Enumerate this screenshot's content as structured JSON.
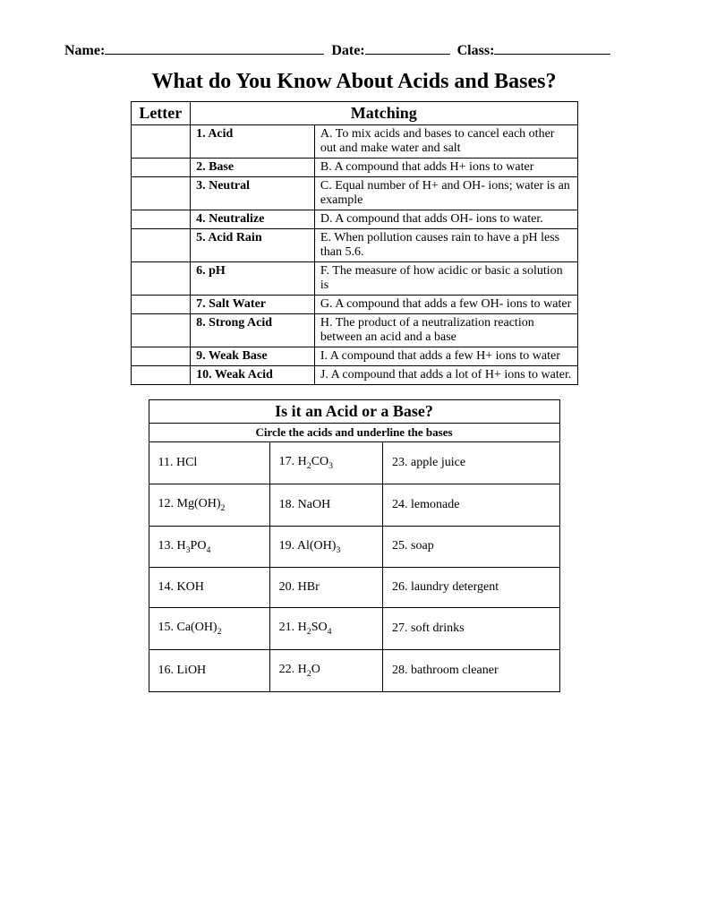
{
  "header": {
    "name_label": "Name:",
    "date_label": "Date:",
    "class_label": "Class:",
    "name_blank_width": 245,
    "date_blank_width": 95,
    "class_blank_width": 130
  },
  "title": "What do You Know About Acids and Bases?",
  "matching": {
    "col_headers": {
      "letter": "Letter",
      "matching": "Matching"
    },
    "rows": [
      {
        "num": "1.",
        "term": "Acid",
        "match": "A.  To mix acids and bases to cancel each other out and make water and salt"
      },
      {
        "num": "2.",
        "term": "Base",
        "match": "B.  A compound that adds H+ ions to water"
      },
      {
        "num": "3.",
        "term": "Neutral",
        "match": "C.  Equal number of H+ and OH- ions; water is an example"
      },
      {
        "num": "4.",
        "term": "Neutralize",
        "match": "D.  A compound that adds OH- ions to water."
      },
      {
        "num": "5.",
        "term": "Acid Rain",
        "match": "E.  When pollution causes rain to have a pH less than 5.6."
      },
      {
        "num": "6.",
        "term": "pH",
        "match": "F.  The measure of how acidic or basic a solution is"
      },
      {
        "num": "7.",
        "term": "Salt Water",
        "match": "G.  A compound that adds a few OH- ions to water"
      },
      {
        "num": "8.",
        "term": "Strong Acid",
        "match": "H.  The product of a neutralization reaction between an acid and a base"
      },
      {
        "num": "9.",
        "term": "Weak Base",
        "match": "I.  A compound that adds a few H+ ions to water"
      },
      {
        "num": "10.",
        "term": "Weak Acid",
        "match": "J.  A compound that adds a lot of H+ ions to water."
      }
    ]
  },
  "acidbase": {
    "title": "Is it an Acid or a Base?",
    "instruction": "Circle the acids and underline the bases",
    "rows": [
      {
        "c1_num": "11.",
        "c1_html": "HCl",
        "c2_num": "17.",
        "c2_html": "H<sub>2</sub>CO<sub>3</sub>",
        "c3_num": "23.",
        "c3_html": "apple juice"
      },
      {
        "c1_num": "12.",
        "c1_html": "Mg(OH)<sub>2</sub>",
        "c2_num": "18.",
        "c2_html": "NaOH",
        "c3_num": "24.",
        "c3_html": "lemonade"
      },
      {
        "c1_num": "13.",
        "c1_html": "H<sub>3</sub>PO<sub>4</sub>",
        "c2_num": "19.",
        "c2_html": "Al(OH)<sub>3</sub>",
        "c3_num": "25.",
        "c3_html": "soap"
      },
      {
        "c1_num": "14.",
        "c1_html": "KOH",
        "c2_num": "20.",
        "c2_html": "HBr",
        "c3_num": "26.",
        "c3_html": "laundry detergent"
      },
      {
        "c1_num": "15.",
        "c1_html": "Ca(OH)<sub>2</sub>",
        "c2_num": "21.",
        "c2_html": "H<sub>2</sub>SO<sub>4</sub>",
        "c3_num": "27.",
        "c3_html": "soft drinks"
      },
      {
        "c1_num": "16.",
        "c1_html": "LiOH",
        "c2_num": "22.",
        "c2_html": "H<sub>2</sub>O",
        "c3_num": "28.",
        "c3_html": "bathroom cleaner"
      }
    ]
  }
}
